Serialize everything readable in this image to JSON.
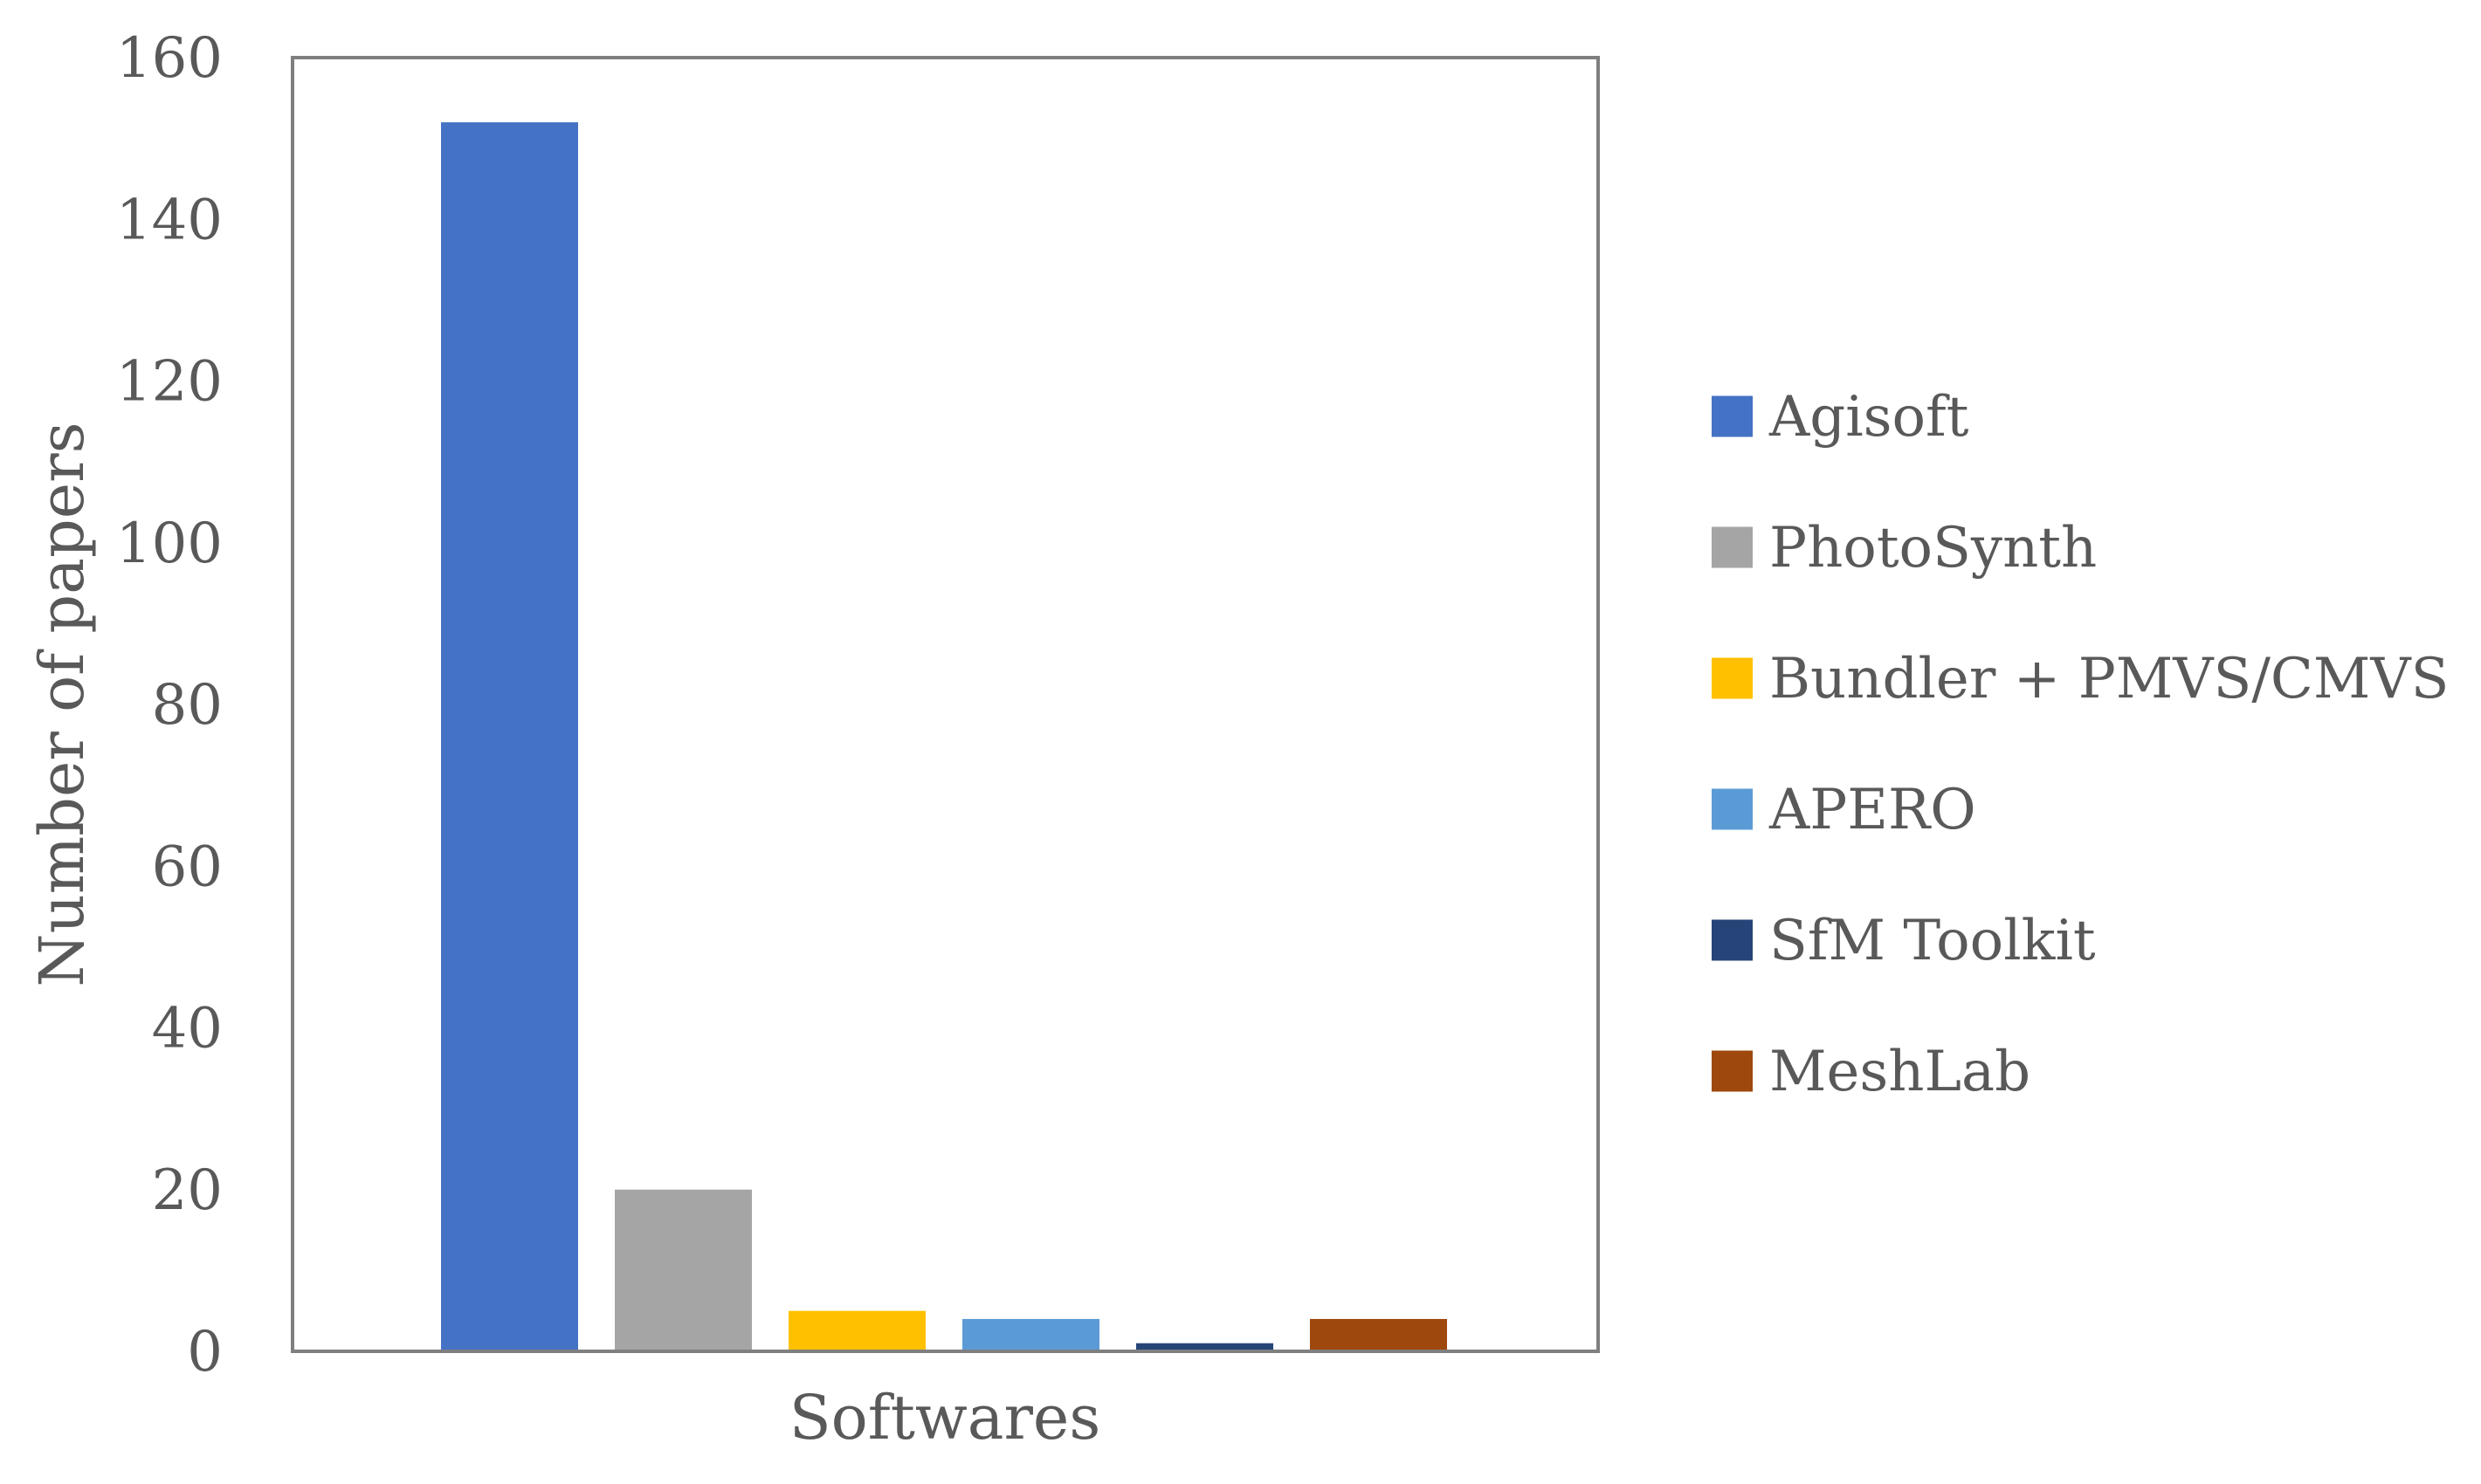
{
  "chart_data": {
    "type": "bar",
    "xlabel": "Softwares",
    "ylabel": "Number of papers",
    "ylim": [
      0,
      160
    ],
    "yticks": [
      "0",
      "20",
      "40",
      "60",
      "80",
      "100",
      "120",
      "140",
      "160"
    ],
    "grid": false,
    "legend_position": "right",
    "series": [
      {
        "name": "Agisoft",
        "value": 152,
        "color": "#4472C4"
      },
      {
        "name": "PhotoSynth",
        "value": 20,
        "color": "#A5A5A5"
      },
      {
        "name": "Bundler + PMVS/CMVS",
        "value": 5,
        "color": "#FFC000"
      },
      {
        "name": "APERO",
        "value": 4,
        "color": "#5B9BD5"
      },
      {
        "name": "SfM Toolkit",
        "value": 1,
        "color": "#264478"
      },
      {
        "name": "MeshLab",
        "value": 4,
        "color": "#9E480E"
      }
    ]
  }
}
